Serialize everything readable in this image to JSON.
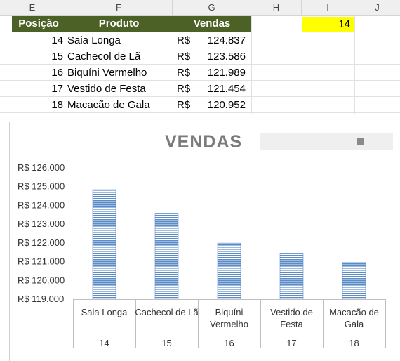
{
  "columns": [
    "E",
    "F",
    "G",
    "H",
    "I",
    "J"
  ],
  "table": {
    "headers": {
      "posicao": "Posição",
      "produto": "Produto",
      "vendas": "Vendas"
    },
    "currency": "R$",
    "rows": [
      {
        "posicao": "14",
        "produto": "Saia Longa",
        "vendas": "124.837"
      },
      {
        "posicao": "15",
        "produto": "Cachecol de Lã",
        "vendas": "123.586"
      },
      {
        "posicao": "16",
        "produto": "Biquíni Vermelho",
        "vendas": "121.989"
      },
      {
        "posicao": "17",
        "produto": "Vestido de Festa",
        "vendas": "121.454"
      },
      {
        "posicao": "18",
        "produto": "Macacão de Gala",
        "vendas": "120.952"
      }
    ]
  },
  "highlight_cell": {
    "value": "14",
    "color": "#ffff00"
  },
  "header_color": "#4b6125",
  "scroll_control": {
    "icon": "scrollbar-thumb"
  },
  "chart_data": {
    "type": "bar",
    "title": "VENDAS",
    "ylim": [
      119000,
      126000
    ],
    "ytick_labels": [
      "R$ 126.000",
      "R$ 125.000",
      "R$ 124.000",
      "R$ 123.000",
      "R$ 122.000",
      "R$ 121.000",
      "R$ 120.000",
      "R$ 119.000"
    ],
    "categories": [
      {
        "name": [
          "Saia Longa"
        ],
        "position": "14"
      },
      {
        "name": [
          "Cachecol de Lã"
        ],
        "position": "15"
      },
      {
        "name": [
          "Biquíni",
          "Vermelho"
        ],
        "position": "16"
      },
      {
        "name": [
          "Vestido de",
          "Festa"
        ],
        "position": "17"
      },
      {
        "name": [
          "Macacão de",
          "Gala"
        ],
        "position": "18"
      }
    ],
    "values": [
      124837,
      123586,
      121989,
      121454,
      120952
    ],
    "bar_color": "#5b8cc8",
    "grid": false
  }
}
